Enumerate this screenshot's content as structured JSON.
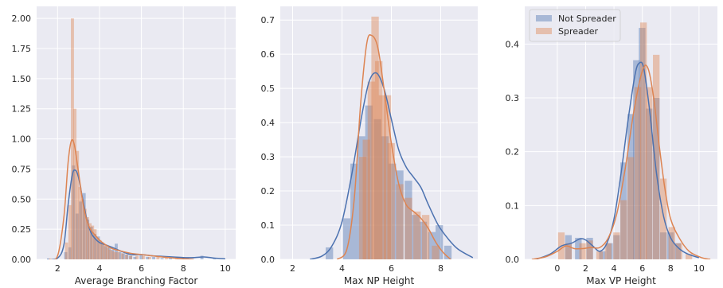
{
  "colors": {
    "not_spreader": "#4c72b0",
    "spreader": "#dd8452",
    "panel_bg": "#eaeaf2",
    "grid": "#ffffff"
  },
  "legend": {
    "position": "top-left",
    "panel": 2,
    "entries": [
      "Not Spreader",
      "Spreader"
    ]
  },
  "chart_data": [
    {
      "type": "histogram_kde",
      "xlabel": "Average Branching Factor",
      "xlim": [
        1,
        10.5
      ],
      "ylim": [
        0,
        2.1
      ],
      "xticks": [
        2,
        4,
        6,
        8,
        10
      ],
      "yticks": [
        0.0,
        0.25,
        0.5,
        0.75,
        1.0,
        1.25,
        1.5,
        1.75,
        2.0
      ],
      "ytick_labels": [
        "0.00",
        "0.25",
        "0.50",
        "0.75",
        "1.00",
        "1.25",
        "1.50",
        "1.75",
        "2.00"
      ],
      "grid": true,
      "bin_width": 0.17,
      "series": [
        {
          "name": "Not Spreader",
          "bins": [
            [
              2.4,
              0.06
            ],
            [
              2.6,
              0.1
            ],
            [
              2.77,
              0.78
            ],
            [
              2.94,
              0.38
            ],
            [
              3.11,
              0.48
            ],
            [
              3.28,
              0.55
            ],
            [
              3.45,
              0.33
            ],
            [
              3.62,
              0.27
            ],
            [
              3.79,
              0.21
            ],
            [
              3.96,
              0.19
            ],
            [
              4.13,
              0.14
            ],
            [
              4.3,
              0.11
            ],
            [
              4.47,
              0.1
            ],
            [
              4.64,
              0.08
            ],
            [
              4.81,
              0.13
            ],
            [
              4.98,
              0.06
            ],
            [
              5.15,
              0.05
            ],
            [
              5.32,
              0.04
            ],
            [
              5.5,
              0.03
            ],
            [
              5.7,
              0.02
            ],
            [
              6.0,
              0.04
            ],
            [
              6.3,
              0.02
            ],
            [
              6.6,
              0.02
            ],
            [
              7.0,
              0.01
            ],
            [
              7.4,
              0.02
            ],
            [
              7.8,
              0.01
            ],
            [
              8.2,
              0.01
            ],
            [
              8.9,
              0.03
            ],
            [
              9.5,
              0.01
            ]
          ],
          "kde": [
            [
              1.5,
              0
            ],
            [
              2.0,
              0.01
            ],
            [
              2.3,
              0.12
            ],
            [
              2.5,
              0.45
            ],
            [
              2.7,
              0.7
            ],
            [
              2.85,
              0.74
            ],
            [
              3.0,
              0.68
            ],
            [
              3.2,
              0.5
            ],
            [
              3.4,
              0.33
            ],
            [
              3.6,
              0.22
            ],
            [
              3.8,
              0.17
            ],
            [
              4.0,
              0.14
            ],
            [
              4.3,
              0.12
            ],
            [
              4.6,
              0.1
            ],
            [
              5.0,
              0.07
            ],
            [
              5.5,
              0.04
            ],
            [
              6.0,
              0.04
            ],
            [
              6.5,
              0.03
            ],
            [
              7.0,
              0.025
            ],
            [
              7.5,
              0.02
            ],
            [
              8.0,
              0.015
            ],
            [
              8.5,
              0.015
            ],
            [
              9.0,
              0.02
            ],
            [
              9.5,
              0.01
            ],
            [
              10.0,
              0.005
            ]
          ]
        },
        {
          "name": "Spreader",
          "bins": [
            [
              2.44,
              0.14
            ],
            [
              2.6,
              0.45
            ],
            [
              2.72,
              2.0
            ],
            [
              2.84,
              1.25
            ],
            [
              2.96,
              0.9
            ],
            [
              3.08,
              0.6
            ],
            [
              3.2,
              0.5
            ],
            [
              3.32,
              0.42
            ],
            [
              3.44,
              0.35
            ],
            [
              3.56,
              0.3
            ],
            [
              3.68,
              0.28
            ],
            [
              3.8,
              0.25
            ],
            [
              3.92,
              0.18
            ],
            [
              4.04,
              0.16
            ],
            [
              4.16,
              0.14
            ],
            [
              4.28,
              0.12
            ],
            [
              4.4,
              0.1
            ],
            [
              4.52,
              0.08
            ],
            [
              4.64,
              0.07
            ],
            [
              4.76,
              0.06
            ],
            [
              4.9,
              0.06
            ],
            [
              5.1,
              0.05
            ],
            [
              5.3,
              0.04
            ],
            [
              5.5,
              0.03
            ],
            [
              5.8,
              0.03
            ],
            [
              6.1,
              0.03
            ],
            [
              6.4,
              0.02
            ],
            [
              6.8,
              0.02
            ],
            [
              7.2,
              0.01
            ],
            [
              7.7,
              0.01
            ]
          ],
          "kde": [
            [
              1.6,
              0
            ],
            [
              2.0,
              0.03
            ],
            [
              2.3,
              0.35
            ],
            [
              2.5,
              0.8
            ],
            [
              2.65,
              0.98
            ],
            [
              2.8,
              0.95
            ],
            [
              3.0,
              0.72
            ],
            [
              3.2,
              0.48
            ],
            [
              3.4,
              0.32
            ],
            [
              3.6,
              0.24
            ],
            [
              3.8,
              0.2
            ],
            [
              4.0,
              0.16
            ],
            [
              4.3,
              0.12
            ],
            [
              4.6,
              0.09
            ],
            [
              5.0,
              0.07
            ],
            [
              5.5,
              0.05
            ],
            [
              6.0,
              0.04
            ],
            [
              6.5,
              0.03
            ],
            [
              7.0,
              0.02
            ],
            [
              7.5,
              0.012
            ],
            [
              8.0,
              0.005
            ],
            [
              8.5,
              0
            ]
          ]
        }
      ]
    },
    {
      "type": "histogram_kde",
      "xlabel": "Max NP Height",
      "xlim": [
        1.5,
        9.5
      ],
      "ylim": [
        0,
        0.74
      ],
      "xticks": [
        2,
        4,
        6,
        8
      ],
      "yticks": [
        0.0,
        0.1,
        0.2,
        0.3,
        0.4,
        0.5,
        0.6,
        0.7
      ],
      "ytick_labels": [
        "0.0",
        "0.1",
        "0.2",
        "0.3",
        "0.4",
        "0.5",
        "0.6",
        "0.7"
      ],
      "grid": true,
      "bin_width": 0.32,
      "series": [
        {
          "name": "Not Spreader",
          "bins": [
            [
              3.5,
              0.035
            ],
            [
              4.2,
              0.12
            ],
            [
              4.5,
              0.28
            ],
            [
              4.8,
              0.36
            ],
            [
              5.1,
              0.45
            ],
            [
              5.45,
              0.41
            ],
            [
              5.75,
              0.36
            ],
            [
              6.05,
              0.28
            ],
            [
              6.35,
              0.26
            ],
            [
              6.7,
              0.23
            ],
            [
              7.0,
              0.13
            ],
            [
              7.3,
              0.11
            ],
            [
              7.65,
              0.08
            ],
            [
              7.95,
              0.1
            ],
            [
              8.3,
              0.04
            ]
          ],
          "kde": [
            [
              2.7,
              0
            ],
            [
              3.2,
              0.01
            ],
            [
              3.6,
              0.04
            ],
            [
              4.0,
              0.11
            ],
            [
              4.4,
              0.25
            ],
            [
              4.8,
              0.42
            ],
            [
              5.1,
              0.52
            ],
            [
              5.4,
              0.545
            ],
            [
              5.7,
              0.5
            ],
            [
              6.0,
              0.41
            ],
            [
              6.3,
              0.32
            ],
            [
              6.6,
              0.27
            ],
            [
              6.9,
              0.24
            ],
            [
              7.2,
              0.21
            ],
            [
              7.5,
              0.16
            ],
            [
              7.9,
              0.1
            ],
            [
              8.3,
              0.06
            ],
            [
              8.7,
              0.03
            ],
            [
              9.3,
              0.005
            ]
          ]
        },
        {
          "name": "Spreader",
          "bins": [
            [
              4.85,
              0.3
            ],
            [
              5.0,
              0.35
            ],
            [
              5.2,
              0.52
            ],
            [
              5.35,
              0.71
            ],
            [
              5.5,
              0.58
            ],
            [
              5.65,
              0.48
            ],
            [
              5.85,
              0.48
            ],
            [
              6.0,
              0.34
            ],
            [
              6.35,
              0.22
            ],
            [
              6.7,
              0.18
            ],
            [
              7.05,
              0.14
            ],
            [
              7.4,
              0.13
            ],
            [
              7.8,
              0.04
            ]
          ],
          "kde": [
            [
              3.8,
              0
            ],
            [
              4.2,
              0.03
            ],
            [
              4.5,
              0.18
            ],
            [
              4.75,
              0.45
            ],
            [
              5.0,
              0.63
            ],
            [
              5.2,
              0.655
            ],
            [
              5.45,
              0.62
            ],
            [
              5.7,
              0.5
            ],
            [
              6.0,
              0.34
            ],
            [
              6.3,
              0.22
            ],
            [
              6.6,
              0.16
            ],
            [
              6.9,
              0.14
            ],
            [
              7.2,
              0.12
            ],
            [
              7.5,
              0.09
            ],
            [
              7.8,
              0.05
            ],
            [
              8.1,
              0.02
            ],
            [
              8.4,
              0
            ]
          ]
        }
      ]
    },
    {
      "type": "histogram_kde",
      "xlabel": "Max VP Height",
      "xlim": [
        -2.3,
        11.3
      ],
      "ylim": [
        0,
        0.47
      ],
      "xticks": [
        0,
        2,
        4,
        6,
        8,
        10
      ],
      "yticks": [
        0.0,
        0.1,
        0.2,
        0.3,
        0.4
      ],
      "ytick_labels": [
        "0.0",
        "0.1",
        "0.2",
        "0.3",
        "0.4"
      ],
      "grid": true,
      "bin_width": 0.5,
      "series": [
        {
          "name": "Not Spreader",
          "bins": [
            [
              0.8,
              0.045
            ],
            [
              1.5,
              0.04
            ],
            [
              2.3,
              0.04
            ],
            [
              3.2,
              0.015
            ],
            [
              3.7,
              0.03
            ],
            [
              4.2,
              0.045
            ],
            [
              4.7,
              0.18
            ],
            [
              5.2,
              0.27
            ],
            [
              5.6,
              0.37
            ],
            [
              6.0,
              0.43
            ],
            [
              6.5,
              0.28
            ],
            [
              7.0,
              0.3
            ],
            [
              7.5,
              0.05
            ],
            [
              8.0,
              0.05
            ],
            [
              8.5,
              0.03
            ]
          ],
          "kde": [
            [
              -1.5,
              0
            ],
            [
              -0.5,
              0.01
            ],
            [
              0.3,
              0.025
            ],
            [
              1.0,
              0.03
            ],
            [
              1.6,
              0.038
            ],
            [
              2.0,
              0.036
            ],
            [
              2.5,
              0.025
            ],
            [
              3.0,
              0.015
            ],
            [
              3.5,
              0.03
            ],
            [
              4.0,
              0.075
            ],
            [
              4.5,
              0.16
            ],
            [
              5.0,
              0.26
            ],
            [
              5.5,
              0.345
            ],
            [
              5.8,
              0.365
            ],
            [
              6.1,
              0.355
            ],
            [
              6.5,
              0.28
            ],
            [
              7.0,
              0.16
            ],
            [
              7.5,
              0.08
            ],
            [
              8.0,
              0.04
            ],
            [
              8.6,
              0.02
            ],
            [
              9.2,
              0.01
            ],
            [
              10.0,
              0.003
            ]
          ]
        },
        {
          "name": "Spreader",
          "bins": [
            [
              0.3,
              0.05
            ],
            [
              0.8,
              0.03
            ],
            [
              1.8,
              0.03
            ],
            [
              2.3,
              0.035
            ],
            [
              3.0,
              0.015
            ],
            [
              3.6,
              0.03
            ],
            [
              4.2,
              0.05
            ],
            [
              4.7,
              0.11
            ],
            [
              5.2,
              0.19
            ],
            [
              5.7,
              0.32
            ],
            [
              6.1,
              0.44
            ],
            [
              6.5,
              0.32
            ],
            [
              7.0,
              0.38
            ],
            [
              7.5,
              0.15
            ],
            [
              8.1,
              0.06
            ],
            [
              8.6,
              0.03
            ],
            [
              9.3,
              0.01
            ]
          ],
          "kde": [
            [
              -1.8,
              0
            ],
            [
              -0.8,
              0.005
            ],
            [
              0,
              0.015
            ],
            [
              0.6,
              0.025
            ],
            [
              1.2,
              0.02
            ],
            [
              1.8,
              0.02
            ],
            [
              2.4,
              0.022
            ],
            [
              3.0,
              0.022
            ],
            [
              3.6,
              0.04
            ],
            [
              4.2,
              0.085
            ],
            [
              4.8,
              0.17
            ],
            [
              5.4,
              0.275
            ],
            [
              6.0,
              0.35
            ],
            [
              6.4,
              0.355
            ],
            [
              6.8,
              0.3
            ],
            [
              7.2,
              0.21
            ],
            [
              7.6,
              0.13
            ],
            [
              8.0,
              0.075
            ],
            [
              8.6,
              0.04
            ],
            [
              9.3,
              0.015
            ],
            [
              10.2,
              0.003
            ],
            [
              10.8,
              0
            ]
          ]
        }
      ]
    }
  ]
}
